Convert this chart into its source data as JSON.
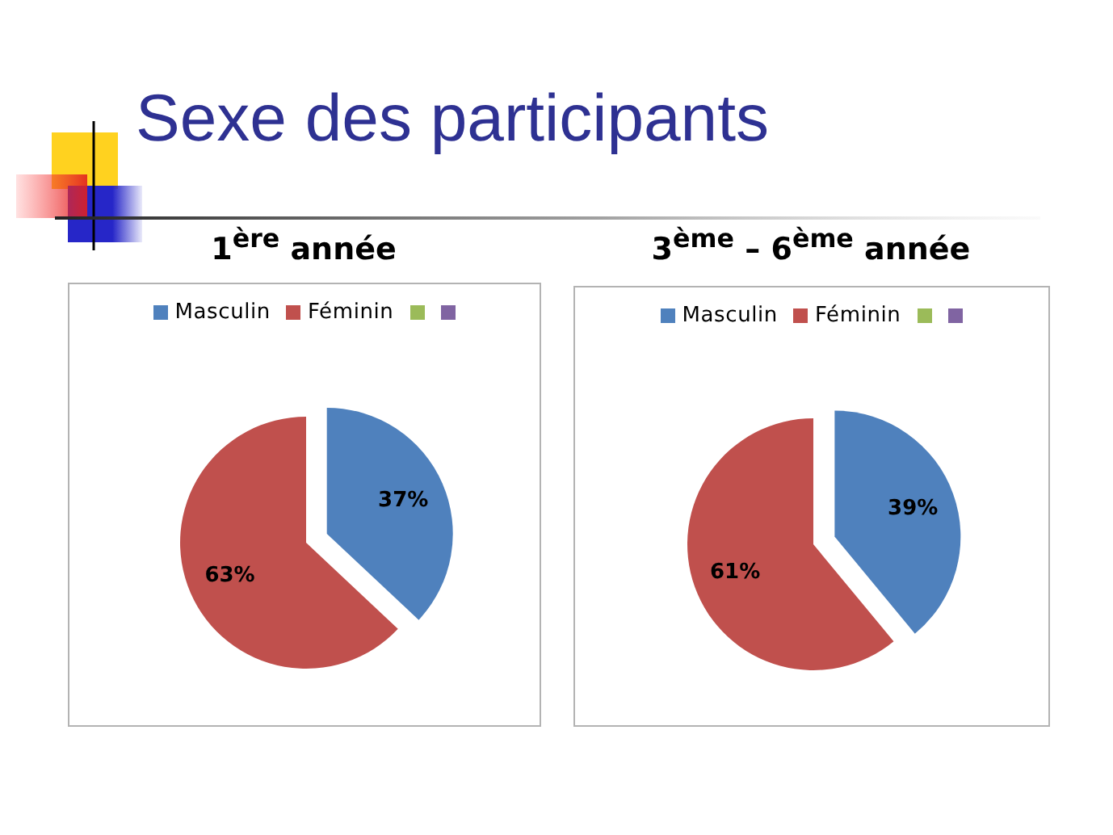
{
  "chart_data": [
    {
      "type": "pie",
      "title": "Sexe des participants",
      "subtitle": "1$^{ère}$ année",
      "categories": [
        "Masculin",
        "Féminin",
        null,
        null
      ],
      "values": [
        37,
        63,
        0,
        0
      ],
      "colors": [
        "#4f81bd",
        "#c0504d",
        "#9bbb59",
        "#8064a2"
      ],
      "value_labels": [
        "37%",
        "63%",
        null,
        null
      ],
      "legend": "top"
    },
    {
      "type": "pie",
      "subtitle": "3$^{ème}$ – 6$^{ème}$ année",
      "categories": [
        "Masculin",
        "Féminin",
        null,
        null
      ],
      "values": [
        39,
        61,
        0,
        0
      ],
      "colors": [
        "#4f81bd",
        "#c0504d",
        "#9bbb59",
        "#8064a2"
      ],
      "value_labels": [
        "39%",
        "61%",
        null,
        null
      ],
      "legend": "top"
    }
  ]
}
